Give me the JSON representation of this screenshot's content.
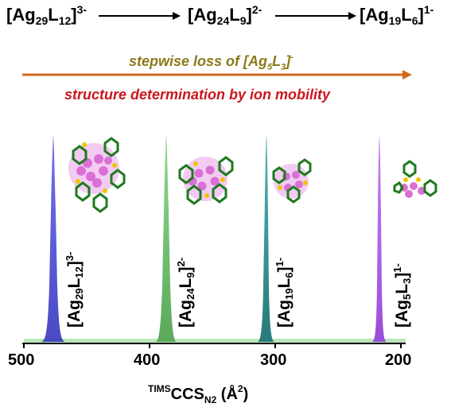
{
  "reaction": {
    "species": [
      {
        "base": "[Ag",
        "n_ag": "29",
        "mid": "L",
        "n_l": "12",
        "close": "]",
        "charge": "3-"
      },
      {
        "base": "[Ag",
        "n_ag": "24",
        "mid": "L",
        "n_l": "9",
        "close": "]",
        "charge": "2-"
      },
      {
        "base": "[Ag",
        "n_ag": "19",
        "mid": "L",
        "n_l": "6",
        "close": "]",
        "charge": "1-"
      }
    ]
  },
  "captions": {
    "loss_text": "stepwise loss of [Ag",
    "loss_sub": "5",
    "loss_mid": "L",
    "loss_sub2": "3",
    "loss_close": "]",
    "loss_charge": "-",
    "structure": "structure determination by ion mobility"
  },
  "colors": {
    "arrow": "#D2691E",
    "olive": "#8B7A1A",
    "red": "#C8171D",
    "peak_blue": "#5B5BE0",
    "peak_green": "#7FC97F",
    "peak_teal": "#3A9A9A",
    "peak_purple": "#B46BE8"
  },
  "peaks": [
    {
      "label_base": "[Ag",
      "n_ag": "29",
      "mid": "L",
      "n_l": "12",
      "close": "]",
      "charge": "3-",
      "ccs": 475,
      "color": "#5B5BE0"
    },
    {
      "label_base": "[Ag",
      "n_ag": "24",
      "mid": "L",
      "n_l": "9",
      "close": "]",
      "charge": "2-",
      "ccs": 383,
      "color": "#7FC97F"
    },
    {
      "label_base": "[Ag",
      "n_ag": "19",
      "mid": "L",
      "n_l": "6",
      "close": "]",
      "charge": "1-",
      "ccs": 304,
      "color": "#3A9A9A"
    },
    {
      "label_base": "[Ag",
      "n_ag": "5",
      "mid": "L",
      "n_l": "3",
      "close": "]",
      "charge": "1-",
      "ccs": 211,
      "color": "#B46BE8"
    }
  ],
  "axis": {
    "ticks": [
      "500",
      "400",
      "300",
      "200"
    ],
    "tick_values": [
      500,
      400,
      300,
      200
    ],
    "xlim": [
      500,
      200
    ],
    "xlabel_sup": "TIMS",
    "xlabel_main": "CCS",
    "xlabel_sub": "N2",
    "xlabel_unit": " (Å",
    "xlabel_unit_sup": "2",
    "xlabel_close": ")"
  }
}
